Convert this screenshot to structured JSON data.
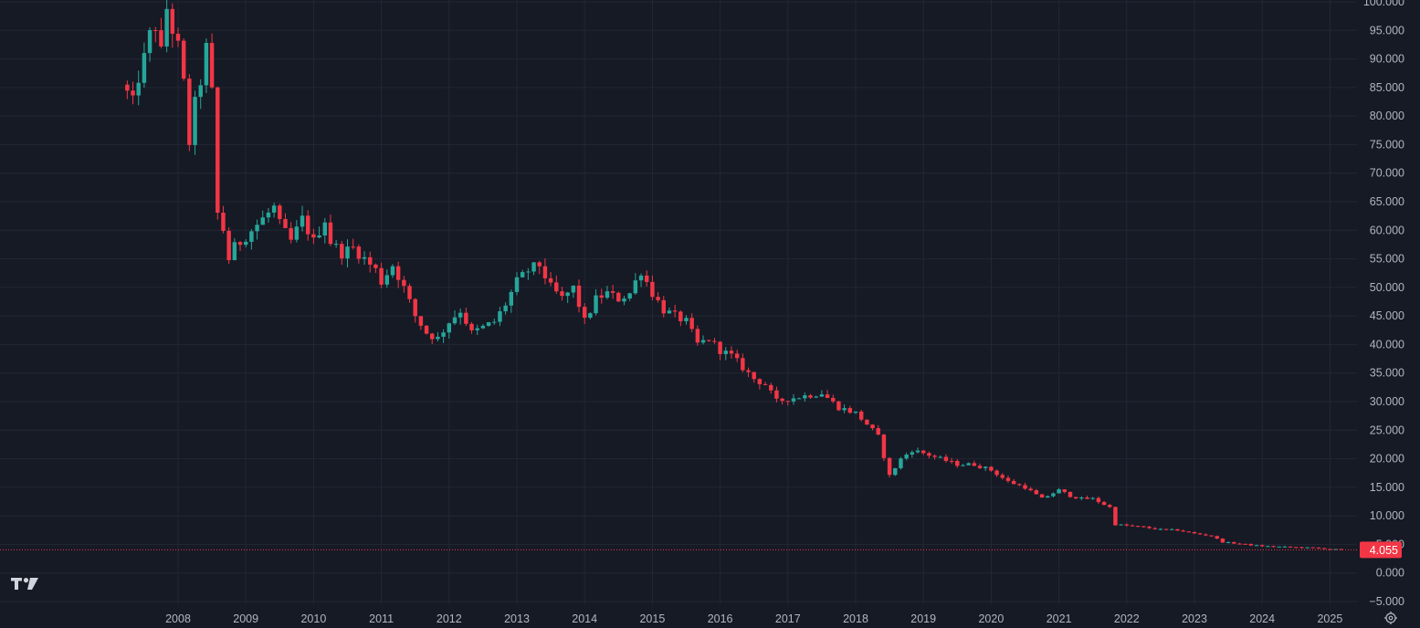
{
  "colors": {
    "background": "#161a25",
    "grid": "#232734",
    "up": "#26a69a",
    "down": "#f23645",
    "axis_text": "#b2b5be",
    "last_price_line": "#f23645"
  },
  "icons": {
    "logo": "tradingview-logo-icon",
    "settings": "settings-gear-icon"
  },
  "chart_data": {
    "type": "candlestick",
    "interval": "monthly",
    "ylim": [
      -5000,
      100000
    ],
    "y_ticks": [
      "100.000",
      "95.000",
      "90.000",
      "85.000",
      "80.000",
      "75.000",
      "70.000",
      "65.000",
      "60.000",
      "55.000",
      "50.000",
      "45.000",
      "40.000",
      "35.000",
      "30.000",
      "25.000",
      "20.000",
      "15.000",
      "10.000",
      "5.000",
      "0.000",
      "−5.000"
    ],
    "y_tick_values": [
      100000,
      95000,
      90000,
      85000,
      80000,
      75000,
      70000,
      65000,
      60000,
      55000,
      50000,
      45000,
      40000,
      35000,
      30000,
      25000,
      20000,
      15000,
      10000,
      5000,
      0,
      -5000
    ],
    "x_ticks": [
      "2008",
      "2009",
      "2010",
      "2011",
      "2012",
      "2013",
      "2014",
      "2015",
      "2016",
      "2017",
      "2018",
      "2019",
      "2020",
      "2021",
      "2022",
      "2023",
      "2024",
      "2025"
    ],
    "x_tick_values": [
      2008,
      2009,
      2010,
      2011,
      2012,
      2013,
      2014,
      2015,
      2016,
      2017,
      2018,
      2019,
      2020,
      2021,
      2022,
      2023,
      2024,
      2025
    ],
    "xlim": [
      2006.42,
      2026.53
    ],
    "last_price": 4055,
    "last_price_label": "4.055",
    "price_anchors": [
      [
        2007.25,
        84000
      ],
      [
        2007.33,
        82000
      ],
      [
        2007.42,
        87000
      ],
      [
        2007.5,
        90000
      ],
      [
        2007.58,
        94000
      ],
      [
        2007.67,
        96000
      ],
      [
        2007.75,
        91000
      ],
      [
        2007.83,
        99000
      ],
      [
        2007.92,
        95000
      ],
      [
        2008.0,
        92000
      ],
      [
        2008.08,
        86000
      ],
      [
        2008.17,
        75000
      ],
      [
        2008.25,
        82000
      ],
      [
        2008.33,
        86000
      ],
      [
        2008.42,
        92000
      ],
      [
        2008.5,
        84000
      ],
      [
        2008.58,
        63000
      ],
      [
        2008.67,
        60000
      ],
      [
        2008.75,
        55000
      ],
      [
        2008.83,
        57000
      ],
      [
        2008.92,
        58000
      ],
      [
        2009.0,
        59000
      ],
      [
        2009.25,
        62000
      ],
      [
        2009.42,
        64000
      ],
      [
        2009.5,
        61000
      ],
      [
        2009.67,
        58000
      ],
      [
        2009.83,
        62000
      ],
      [
        2010.0,
        58000
      ],
      [
        2010.17,
        62000
      ],
      [
        2010.25,
        58000
      ],
      [
        2010.42,
        56000
      ],
      [
        2010.58,
        57000
      ],
      [
        2010.75,
        55000
      ],
      [
        2010.92,
        53000
      ],
      [
        2011.0,
        51000
      ],
      [
        2011.17,
        54000
      ],
      [
        2011.33,
        50000
      ],
      [
        2011.5,
        45000
      ],
      [
        2011.67,
        42000
      ],
      [
        2011.83,
        41000
      ],
      [
        2012.0,
        44000
      ],
      [
        2012.17,
        46000
      ],
      [
        2012.33,
        42000
      ],
      [
        2012.5,
        43000
      ],
      [
        2012.67,
        44000
      ],
      [
        2012.83,
        47000
      ],
      [
        2013.0,
        51000
      ],
      [
        2013.17,
        53000
      ],
      [
        2013.33,
        54000
      ],
      [
        2013.5,
        50000
      ],
      [
        2013.67,
        48000
      ],
      [
        2013.83,
        50000
      ],
      [
        2014.0,
        44000
      ],
      [
        2014.17,
        48000
      ],
      [
        2014.33,
        49000
      ],
      [
        2014.5,
        48000
      ],
      [
        2014.67,
        49000
      ],
      [
        2014.83,
        53000
      ],
      [
        2015.0,
        49000
      ],
      [
        2015.17,
        46000
      ],
      [
        2015.33,
        45000
      ],
      [
        2015.5,
        44000
      ],
      [
        2015.67,
        40000
      ],
      [
        2015.83,
        41000
      ],
      [
        2016.0,
        39000
      ],
      [
        2016.17,
        38000
      ],
      [
        2016.33,
        36000
      ],
      [
        2016.5,
        34000
      ],
      [
        2016.67,
        33000
      ],
      [
        2016.83,
        30000
      ],
      [
        2017.0,
        30500
      ],
      [
        2017.25,
        31000
      ],
      [
        2017.5,
        31500
      ],
      [
        2017.75,
        29000
      ],
      [
        2018.0,
        28000
      ],
      [
        2018.17,
        26000
      ],
      [
        2018.33,
        24000
      ],
      [
        2018.5,
        17000
      ],
      [
        2018.67,
        20000
      ],
      [
        2018.83,
        21500
      ],
      [
        2019.0,
        21000
      ],
      [
        2019.25,
        20000
      ],
      [
        2019.5,
        19000
      ],
      [
        2019.75,
        19000
      ],
      [
        2020.0,
        18000
      ],
      [
        2020.25,
        16000
      ],
      [
        2020.5,
        15000
      ],
      [
        2020.75,
        13000
      ],
      [
        2021.0,
        14500
      ],
      [
        2021.17,
        13500
      ],
      [
        2021.33,
        13000
      ],
      [
        2021.5,
        13000
      ],
      [
        2021.75,
        11500
      ],
      [
        2021.83,
        8500
      ],
      [
        2022.0,
        8300
      ],
      [
        2022.25,
        8000
      ],
      [
        2022.5,
        7600
      ],
      [
        2022.75,
        7500
      ],
      [
        2023.0,
        6900
      ],
      [
        2023.25,
        6500
      ],
      [
        2023.42,
        5400
      ],
      [
        2023.67,
        5100
      ],
      [
        2024.0,
        4700
      ],
      [
        2024.25,
        4600
      ],
      [
        2024.5,
        4500
      ],
      [
        2024.75,
        4400
      ],
      [
        2025.0,
        4200
      ],
      [
        2025.17,
        4055
      ]
    ]
  }
}
